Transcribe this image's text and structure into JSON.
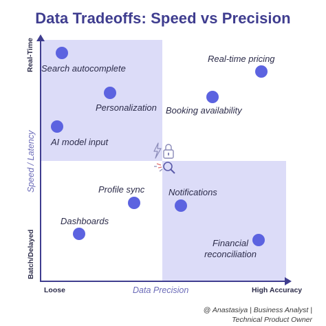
{
  "title": "Data Tradeoffs: Speed vs Precision",
  "axes": {
    "y_top": "Real-Time",
    "y_middle": "Speed / Latency",
    "y_bottom": "Batch/Delayed",
    "x_left": "Loose",
    "x_middle": "Data Precision",
    "x_right": "High Accuracy"
  },
  "points": [
    {
      "label": "Search autocomplete"
    },
    {
      "label": "Personalization"
    },
    {
      "label": "AI model input"
    },
    {
      "label": "Real-time pricing"
    },
    {
      "label": "Booking availability"
    },
    {
      "label": "Profile sync"
    },
    {
      "label": "Dashboards"
    },
    {
      "label": "Notifications"
    },
    {
      "label": "Financial reconciliation"
    }
  ],
  "center_icons": [
    "lightning-icon",
    "lock-icon",
    "sparkle-icon",
    "magnifier-icon"
  ],
  "credit": {
    "line1": "@ Anastasiya | Business Analyst |",
    "line2": "Technical  Product Owner"
  },
  "colors": {
    "title": "#3f3d8f",
    "quadrant_fill": "#dcdcf8",
    "dot": "#5c63e0",
    "axis": "#3f3d8f"
  }
}
